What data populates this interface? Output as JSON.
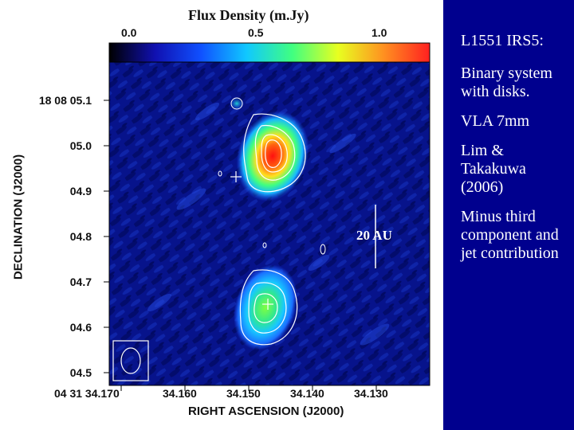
{
  "figure": {
    "colorbar_title": "Flux Density (m.Jy)",
    "colorbar_ticks": [
      "0.0",
      "0.5",
      "1.0"
    ],
    "colorbar_stops": [
      "#000000",
      "#1010b0",
      "#1050ff",
      "#10c8ff",
      "#40ff80",
      "#e8ff20",
      "#ff9020",
      "#ff2020"
    ],
    "y_axis_label": "DECLINATION (J2000)",
    "x_axis_label": "RIGHT ASCENSION (J2000)",
    "y_ticks": [
      "18 08 05.1",
      "05.0",
      "04.9",
      "04.8",
      "04.7",
      "04.6",
      "04.5"
    ],
    "x_ticks": [
      "04 31 34.170",
      "34.160",
      "34.150",
      "34.140",
      "34.130"
    ],
    "scale_bar_label": "20 AU"
  },
  "sidebar": {
    "paragraphs": [
      "L1551 IRS5:",
      "Binary system with disks.",
      "VLA 7mm",
      "Lim & Takakuwa (2006)",
      "Minus third component and jet contribution"
    ]
  }
}
